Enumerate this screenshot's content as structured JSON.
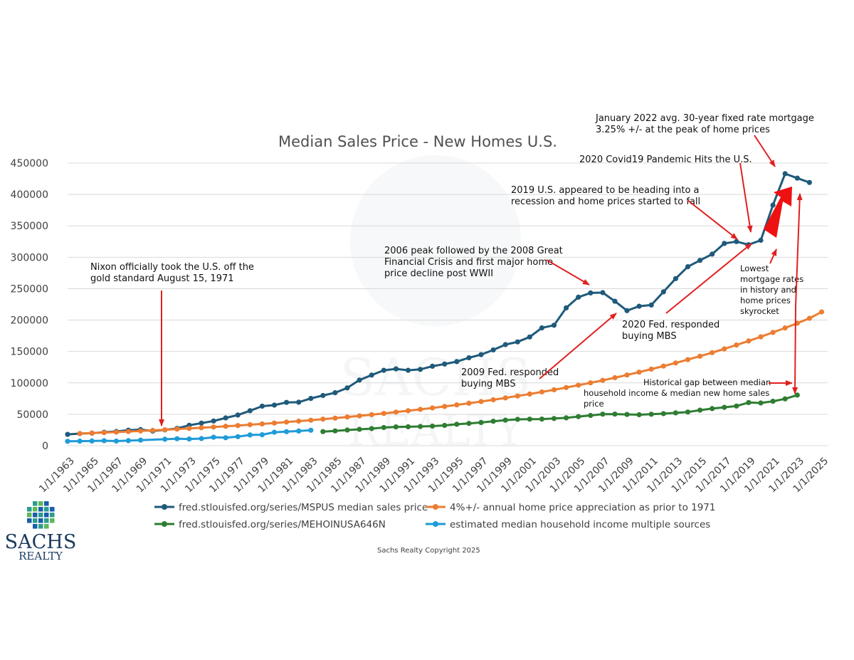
{
  "chart_data": {
    "type": "line",
    "title": "Median Sales Price - New Homes U.S.",
    "xlabel": "",
    "ylabel": "",
    "ylim": [
      0,
      450000
    ],
    "yticks": [
      0,
      50000,
      100000,
      150000,
      200000,
      250000,
      300000,
      350000,
      400000,
      450000
    ],
    "xlim": [
      1963,
      2025.5
    ],
    "xtick_years": [
      1963,
      1965,
      1967,
      1969,
      1971,
      1973,
      1975,
      1977,
      1979,
      1981,
      1983,
      1985,
      1987,
      1989,
      1991,
      1993,
      1995,
      1997,
      1999,
      2001,
      2003,
      2005,
      2007,
      2009,
      2011,
      2013,
      2015,
      2017,
      2019,
      2021,
      2023,
      2025
    ],
    "xtick_labels": [
      "1/1/1963",
      "1/1/1965",
      "1/1/1967",
      "1/1/1969",
      "1/1/1971",
      "1/1/1973",
      "1/1/1975",
      "1/1/1977",
      "1/1/1979",
      "1/1/1981",
      "1/1/1983",
      "1/1/1985",
      "1/1/1987",
      "1/1/1989",
      "1/1/1991",
      "1/1/1993",
      "1/1/1995",
      "1/1/1997",
      "1/1/1999",
      "1/1/2001",
      "1/1/2003",
      "1/1/2005",
      "1/1/2007",
      "1/1/2009",
      "1/1/2011",
      "1/1/2013",
      "1/1/2015",
      "1/1/2017",
      "1/1/2019",
      "1/1/2021",
      "1/1/2023",
      "1/1/2025"
    ],
    "grid": true,
    "legend_position": "bottom",
    "series": [
      {
        "name": "fred.stlouisfed.org/series/MSPUS median sales price",
        "color": "#1f5a7a",
        "x": [
          1963,
          1964,
          1965,
          1966,
          1967,
          1968,
          1969,
          1970,
          1971,
          1972,
          1973,
          1974,
          1975,
          1976,
          1977,
          1978,
          1979,
          1980,
          1981,
          1982,
          1983,
          1984,
          1985,
          1986,
          1987,
          1988,
          1989,
          1990,
          1991,
          1992,
          1993,
          1994,
          1995,
          1996,
          1997,
          1998,
          1999,
          2000,
          2001,
          2002,
          2003,
          2004,
          2005,
          2006,
          2007,
          2008,
          2009,
          2010,
          2011,
          2012,
          2013,
          2014,
          2015,
          2016,
          2017,
          2018,
          2019,
          2020,
          2021,
          2022,
          2023,
          2024
        ],
        "values": [
          18000,
          19300,
          20000,
          21400,
          22700,
          24700,
          25600,
          23400,
          25200,
          27600,
          32500,
          35900,
          39300,
          44200,
          48800,
          55700,
          62900,
          64600,
          68900,
          69300,
          75300,
          79900,
          84300,
          92000,
          104500,
          112500,
          120000,
          122300,
          120000,
          121500,
          126500,
          130000,
          133900,
          140000,
          145000,
          152500,
          161000,
          165300,
          173100,
          187600,
          191800,
          219400,
          236400,
          243200,
          243700,
          230000,
          215000,
          222000,
          224000,
          245000,
          266000,
          285000,
          295000,
          305000,
          322000,
          325000,
          320000,
          327000,
          383000,
          433000,
          426000,
          419000
        ]
      },
      {
        "name": "4%+/- annual home price appreciation as prior to 1971",
        "color": "#ec7d32",
        "x": [
          1964,
          1965,
          1966,
          1967,
          1968,
          1969,
          1970,
          1971,
          1972,
          1973,
          1974,
          1975,
          1976,
          1977,
          1978,
          1979,
          1980,
          1981,
          1982,
          1983,
          1984,
          1985,
          1986,
          1987,
          1988,
          1989,
          1990,
          1991,
          1992,
          1993,
          1994,
          1995,
          1996,
          1997,
          1998,
          1999,
          2000,
          2001,
          2002,
          2003,
          2004,
          2005,
          2006,
          2007,
          2008,
          2009,
          2010,
          2011,
          2012,
          2013,
          2014,
          2015,
          2016,
          2017,
          2018,
          2019,
          2020,
          2021,
          2022,
          2023,
          2024,
          2025
        ],
        "values": [
          19300,
          20100,
          20900,
          21700,
          22600,
          23500,
          24400,
          25400,
          26400,
          27500,
          28600,
          29700,
          30900,
          32100,
          33400,
          34700,
          36100,
          37600,
          39100,
          40600,
          42300,
          43900,
          45700,
          47500,
          49400,
          51400,
          53500,
          55600,
          57800,
          60100,
          62500,
          65000,
          67600,
          70300,
          73100,
          76100,
          79100,
          82300,
          85600,
          89000,
          92600,
          96300,
          100100,
          104100,
          108300,
          112600,
          117100,
          121800,
          126700,
          131700,
          137000,
          142500,
          148200,
          154100,
          160300,
          166700,
          173300,
          180300,
          187500,
          195000,
          202800,
          213000
        ]
      },
      {
        "name": "fred.stlouisfed.org/series/MEHOINUSA646N",
        "color": "#2e7d32",
        "x": [
          1984,
          1985,
          1986,
          1987,
          1988,
          1989,
          1990,
          1991,
          1992,
          1993,
          1994,
          1995,
          1996,
          1997,
          1998,
          1999,
          2000,
          2001,
          2002,
          2003,
          2004,
          2005,
          2006,
          2007,
          2008,
          2009,
          2010,
          2011,
          2012,
          2013,
          2014,
          2015,
          2016,
          2017,
          2018,
          2019,
          2020,
          2021,
          2022,
          2023
        ],
        "values": [
          22400,
          23600,
          24900,
          26100,
          27200,
          28900,
          29900,
          30100,
          30600,
          31200,
          32300,
          34100,
          35500,
          37000,
          38900,
          40700,
          41990,
          42230,
          42410,
          43320,
          44330,
          46330,
          48200,
          50230,
          50300,
          49780,
          49280,
          50050,
          51020,
          52250,
          53660,
          56520,
          59040,
          61140,
          63180,
          68700,
          68010,
          70780,
          74580,
          80610
        ]
      },
      {
        "name": "estimated median household income multiple sources",
        "color": "#1f9bd8",
        "x": [
          1963,
          1964,
          1965,
          1966,
          1967,
          1968,
          1969,
          1971,
          1972,
          1973,
          1974,
          1975,
          1976,
          1977,
          1978,
          1979,
          1980,
          1981,
          1982,
          1983
        ],
        "values": [
          7000,
          7200,
          7500,
          7900,
          7400,
          8100,
          8800,
          10300,
          11100,
          10600,
          11300,
          13500,
          12700,
          14400,
          17100,
          17400,
          21400,
          22300,
          23400,
          24600
        ]
      }
    ],
    "annotations": {
      "nixon": [
        "Nixon officially took the U.S. off the",
        "gold standard August 15, 1971"
      ],
      "peak2006": [
        "2006 peak followed by the 2008 Great",
        "Financial Crisis and first major home",
        "price decline post WWII"
      ],
      "fed2009": [
        "2009 Fed. responded",
        "buying MBS"
      ],
      "fed2020": [
        "2020 Fed. responded",
        "buying MBS"
      ],
      "recession2019": [
        "2019 U.S. appeared to be heading into a",
        "recession and home prices started to fall"
      ],
      "covid": [
        "2020 Covid19 Pandemic Hits the U.S."
      ],
      "jan2022": [
        "January 2022 avg. 30-year fixed rate mortgage",
        "3.25% +/- at the peak of home prices"
      ],
      "lowest": [
        "Lowest",
        "mortgage rates",
        "in history and",
        "home prices",
        "skyrocket"
      ],
      "gap": [
        "Historical gap between median",
        "household income & median new home sales",
        "price"
      ]
    }
  },
  "footer": {
    "copyright": "Sachs Realty Copyright 2025"
  },
  "logo": {
    "name": "SACHS",
    "sub": "REALTY",
    "colors": {
      "blue": "#1a5ea8",
      "teal": "#2a9d8f",
      "green": "#5cb85c"
    }
  },
  "watermark": {
    "lines": [
      "SACHS",
      "REALTY"
    ]
  },
  "colors": {
    "annotation_arrow": "#e02020",
    "grid": "#d9d9d9"
  }
}
